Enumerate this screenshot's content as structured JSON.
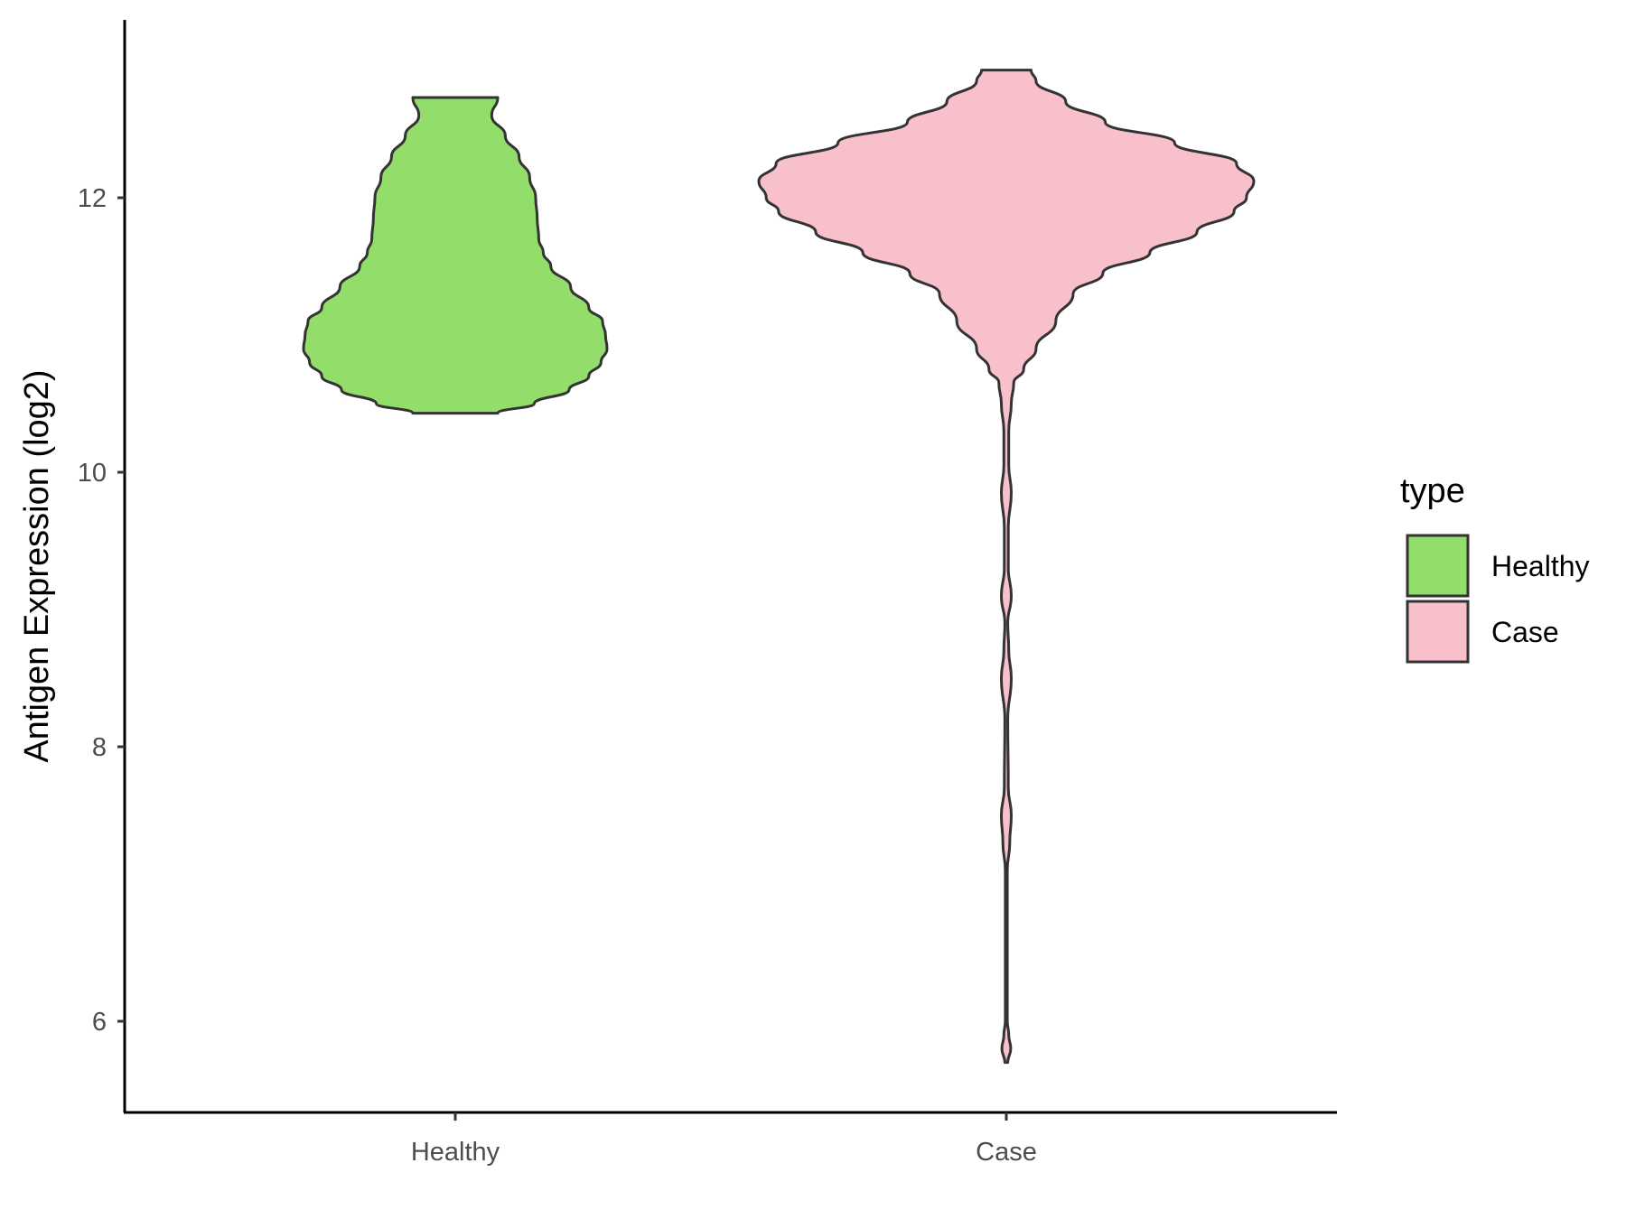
{
  "chart_data": {
    "type": "violin",
    "title": "",
    "xlabel": "",
    "ylabel": "Antigen Expression (log2)",
    "ylim": [
      5.3,
      13.25
    ],
    "yticks": [
      6,
      8,
      10,
      12
    ],
    "grid": false,
    "categories": [
      "Healthy",
      "Case"
    ],
    "legend": {
      "title": "type",
      "position": "right",
      "entries": [
        {
          "label": "Healthy",
          "color": "#93DD6A"
        },
        {
          "label": "Case",
          "color": "#F8C0CB"
        }
      ]
    },
    "series": [
      {
        "name": "Healthy",
        "color": "#93DD6A",
        "min": 10.43,
        "max": 12.73,
        "profile": [
          [
            10.43,
            0.28
          ],
          [
            10.5,
            0.52
          ],
          [
            10.6,
            0.75
          ],
          [
            10.7,
            0.88
          ],
          [
            10.8,
            0.96
          ],
          [
            10.9,
            1.0
          ],
          [
            11.0,
            0.99
          ],
          [
            11.1,
            0.97
          ],
          [
            11.2,
            0.88
          ],
          [
            11.35,
            0.76
          ],
          [
            11.5,
            0.63
          ],
          [
            11.6,
            0.58
          ],
          [
            11.7,
            0.55
          ],
          [
            11.85,
            0.54
          ],
          [
            12.0,
            0.53
          ],
          [
            12.15,
            0.49
          ],
          [
            12.3,
            0.42
          ],
          [
            12.45,
            0.33
          ],
          [
            12.6,
            0.24
          ],
          [
            12.73,
            0.28
          ]
        ]
      },
      {
        "name": "Case",
        "color": "#F8C0CB",
        "min": 5.7,
        "max": 12.93,
        "profile": [
          [
            5.7,
            0.006
          ],
          [
            5.8,
            0.018
          ],
          [
            5.9,
            0.01
          ],
          [
            6.0,
            0.004
          ],
          [
            7.1,
            0.004
          ],
          [
            7.3,
            0.014
          ],
          [
            7.5,
            0.02
          ],
          [
            7.7,
            0.008
          ],
          [
            8.2,
            0.006
          ],
          [
            8.5,
            0.02
          ],
          [
            8.7,
            0.01
          ],
          [
            8.9,
            0.006
          ],
          [
            9.1,
            0.02
          ],
          [
            9.3,
            0.008
          ],
          [
            9.6,
            0.008
          ],
          [
            9.85,
            0.02
          ],
          [
            10.05,
            0.01
          ],
          [
            10.3,
            0.01
          ],
          [
            10.5,
            0.02
          ],
          [
            10.65,
            0.03
          ],
          [
            10.75,
            0.07
          ],
          [
            10.9,
            0.12
          ],
          [
            11.1,
            0.2
          ],
          [
            11.3,
            0.27
          ],
          [
            11.45,
            0.39
          ],
          [
            11.6,
            0.58
          ],
          [
            11.75,
            0.77
          ],
          [
            11.9,
            0.92
          ],
          [
            12.0,
            0.97
          ],
          [
            12.12,
            1.0
          ],
          [
            12.25,
            0.93
          ],
          [
            12.4,
            0.68
          ],
          [
            12.55,
            0.4
          ],
          [
            12.7,
            0.24
          ],
          [
            12.85,
            0.12
          ],
          [
            12.93,
            0.1
          ]
        ]
      }
    ]
  }
}
